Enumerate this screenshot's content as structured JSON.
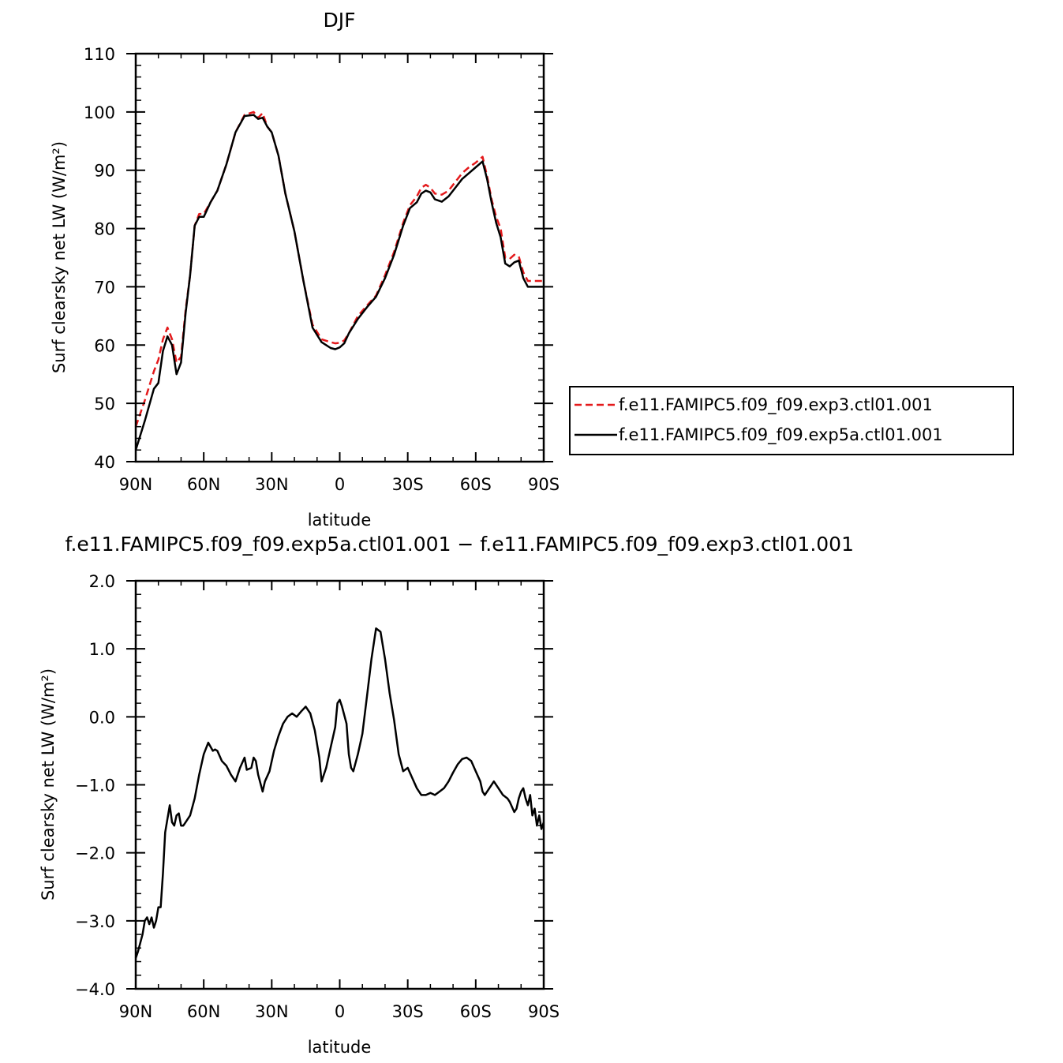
{
  "chart_data": [
    {
      "type": "line",
      "title": "DJF",
      "xlabel": "latitude",
      "ylabel": "Surf clearsky net LW (W/m²)",
      "xlim": [
        90,
        -90
      ],
      "ylim": [
        40,
        110
      ],
      "xticks": [
        {
          "value": 90,
          "label": "90N"
        },
        {
          "value": 60,
          "label": "60N"
        },
        {
          "value": 30,
          "label": "30N"
        },
        {
          "value": 0,
          "label": "0"
        },
        {
          "value": -30,
          "label": "30S"
        },
        {
          "value": -60,
          "label": "60S"
        },
        {
          "value": -90,
          "label": "90S"
        }
      ],
      "yticks": [
        {
          "value": 40,
          "label": "40"
        },
        {
          "value": 50,
          "label": "50"
        },
        {
          "value": 60,
          "label": "60"
        },
        {
          "value": 70,
          "label": "70"
        },
        {
          "value": 80,
          "label": "80"
        },
        {
          "value": 90,
          "label": "90"
        },
        {
          "value": 100,
          "label": "100"
        },
        {
          "value": 110,
          "label": "110"
        }
      ],
      "legend_position": "right",
      "series": [
        {
          "name": "f.e11.FAMIPC5.f09_f09.exp3.ctl01.001",
          "color": "#e41a1c",
          "dash": "dashed",
          "x": [
            90,
            86,
            82,
            80,
            78,
            76,
            74,
            72,
            70,
            68,
            66,
            64,
            62,
            60,
            57,
            54,
            50,
            46,
            42,
            38,
            36,
            34,
            32,
            30,
            27,
            24,
            20,
            16,
            12,
            8,
            4,
            2,
            0,
            -2,
            -4,
            -8,
            -12,
            -16,
            -20,
            -24,
            -28,
            -31,
            -34,
            -36,
            -38,
            -40,
            -42,
            -45,
            -48,
            -51,
            -54,
            -57,
            -60,
            -63,
            -65,
            -67,
            -69,
            -71,
            -73,
            -75,
            -77,
            -79,
            -81,
            -83,
            -85,
            -87,
            -89,
            -90
          ],
          "y": [
            46,
            50.5,
            55.5,
            57.5,
            61,
            63,
            61,
            57,
            58,
            66,
            72,
            80.5,
            82.5,
            82.5,
            84.5,
            86.5,
            91,
            96.5,
            99.5,
            100,
            99,
            99.8,
            97.5,
            96.5,
            92.5,
            86,
            79.5,
            71,
            63.5,
            61,
            60.5,
            60.3,
            60.4,
            60.8,
            62,
            65,
            66.8,
            68.5,
            72,
            76,
            81,
            84,
            85.5,
            87,
            87.5,
            87,
            86,
            85.8,
            86.5,
            88,
            89.5,
            90.5,
            91.3,
            92.3,
            89,
            85,
            82,
            80,
            75,
            74.8,
            75.5,
            75.2,
            72.5,
            71,
            71,
            71,
            71,
            71
          ]
        },
        {
          "name": "f.e11.FAMIPC5.f09_f09.exp5a.ctl01.001",
          "color": "#000000",
          "dash": "solid",
          "x": [
            90,
            86,
            82,
            80,
            78,
            76,
            74,
            72,
            70,
            68,
            66,
            64,
            62,
            60,
            57,
            54,
            50,
            46,
            42,
            38,
            36,
            34,
            32,
            30,
            27,
            24,
            20,
            16,
            12,
            8,
            4,
            2,
            0,
            -2,
            -4,
            -8,
            -12,
            -16,
            -20,
            -24,
            -28,
            -31,
            -34,
            -36,
            -38,
            -40,
            -42,
            -45,
            -48,
            -51,
            -54,
            -57,
            -60,
            -63,
            -65,
            -67,
            -69,
            -71,
            -73,
            -75,
            -77,
            -79,
            -81,
            -83,
            -85,
            -87,
            -89,
            -90
          ],
          "y": [
            42,
            47,
            52.5,
            53.5,
            59,
            61.5,
            60,
            55,
            57,
            65.5,
            72,
            80.5,
            82,
            82,
            84.5,
            86.5,
            91,
            96.5,
            99.3,
            99.5,
            98.8,
            99,
            97.5,
            96.5,
            92.5,
            86,
            79.5,
            71,
            63,
            60.5,
            59.5,
            59.3,
            59.6,
            60.3,
            62,
            64.5,
            66.5,
            68.3,
            71.5,
            75.5,
            80.5,
            83.5,
            84.5,
            86,
            86.5,
            86.2,
            85,
            84.6,
            85.5,
            87,
            88.5,
            89.5,
            90.5,
            91.5,
            88.5,
            84.5,
            81,
            78.5,
            74,
            73.5,
            74.2,
            74.5,
            71.5,
            70,
            70,
            70,
            70,
            70
          ]
        }
      ]
    },
    {
      "type": "line",
      "title": "f.e11.FAMIPC5.f09_f09.exp5a.ctl01.001 − f.e11.FAMIPC5.f09_f09.exp3.ctl01.001",
      "xlabel": "latitude",
      "ylabel": "Surf clearsky net LW (W/m²)",
      "xlim": [
        90,
        -90
      ],
      "ylim": [
        -4.0,
        2.0
      ],
      "xticks": [
        {
          "value": 90,
          "label": "90N"
        },
        {
          "value": 60,
          "label": "60N"
        },
        {
          "value": 30,
          "label": "30N"
        },
        {
          "value": 0,
          "label": "0"
        },
        {
          "value": -30,
          "label": "30S"
        },
        {
          "value": -60,
          "label": "60S"
        },
        {
          "value": -90,
          "label": "90S"
        }
      ],
      "yticks": [
        {
          "value": -4.0,
          "label": "−4.0"
        },
        {
          "value": -3.0,
          "label": "−3.0"
        },
        {
          "value": -2.0,
          "label": "−2.0"
        },
        {
          "value": -1.0,
          "label": "−1.0"
        },
        {
          "value": 0.0,
          "label": "0.0"
        },
        {
          "value": 1.0,
          "label": "1.0"
        },
        {
          "value": 2.0,
          "label": "2.0"
        }
      ],
      "series": [
        {
          "color": "#000000",
          "dash": "solid",
          "x": [
            90,
            89,
            87,
            86,
            85,
            84,
            83,
            82,
            81,
            80,
            79,
            78,
            77,
            76,
            75,
            74,
            73,
            72,
            71,
            70,
            69,
            68,
            66,
            64,
            62,
            60,
            58,
            56,
            55,
            54,
            52,
            50,
            48,
            46,
            44,
            42,
            41,
            39,
            38,
            37,
            36,
            34,
            33,
            31,
            29,
            27,
            25,
            23,
            21,
            19,
            17,
            15,
            13,
            11,
            9,
            8,
            6,
            4,
            2,
            1,
            0,
            -1,
            -3,
            -4,
            -5,
            -6,
            -8,
            -10,
            -12,
            -14,
            -16,
            -18,
            -20,
            -22,
            -24,
            -25,
            -26,
            -28,
            -30,
            -32,
            -34,
            -36,
            -38,
            -40,
            -42,
            -44,
            -46,
            -48,
            -50,
            -52,
            -54,
            -56,
            -58,
            -60,
            -62,
            -63,
            -64,
            -66,
            -68,
            -70,
            -72,
            -74,
            -75,
            -77,
            -78,
            -79,
            -80,
            -81,
            -82,
            -83,
            -84,
            -85,
            -86,
            -87,
            -88,
            -89,
            -90
          ],
          "y": [
            -3.55,
            -3.45,
            -3.2,
            -3.0,
            -2.95,
            -3.05,
            -2.95,
            -3.1,
            -3.0,
            -2.8,
            -2.8,
            -2.3,
            -1.7,
            -1.5,
            -1.3,
            -1.55,
            -1.6,
            -1.45,
            -1.42,
            -1.6,
            -1.6,
            -1.55,
            -1.45,
            -1.2,
            -0.85,
            -0.55,
            -0.38,
            -0.5,
            -0.48,
            -0.5,
            -0.65,
            -0.72,
            -0.85,
            -0.95,
            -0.75,
            -0.6,
            -0.78,
            -0.75,
            -0.6,
            -0.65,
            -0.85,
            -1.1,
            -0.95,
            -0.8,
            -0.5,
            -0.28,
            -0.1,
            0.0,
            0.05,
            0.0,
            0.08,
            0.15,
            0.05,
            -0.2,
            -0.6,
            -0.95,
            -0.75,
            -0.45,
            -0.15,
            0.2,
            0.25,
            0.15,
            -0.1,
            -0.55,
            -0.75,
            -0.8,
            -0.55,
            -0.25,
            0.3,
            0.85,
            1.3,
            1.25,
            0.85,
            0.35,
            -0.05,
            -0.3,
            -0.55,
            -0.8,
            -0.75,
            -0.9,
            -1.05,
            -1.15,
            -1.15,
            -1.12,
            -1.15,
            -1.1,
            -1.05,
            -0.95,
            -0.82,
            -0.7,
            -0.62,
            -0.6,
            -0.65,
            -0.8,
            -0.95,
            -1.1,
            -1.15,
            -1.05,
            -0.95,
            -1.05,
            -1.15,
            -1.2,
            -1.25,
            -1.4,
            -1.35,
            -1.2,
            -1.1,
            -1.05,
            -1.2,
            -1.3,
            -1.15,
            -1.45,
            -1.35,
            -1.6,
            -1.45,
            -1.65,
            -1.55
          ]
        }
      ]
    }
  ]
}
